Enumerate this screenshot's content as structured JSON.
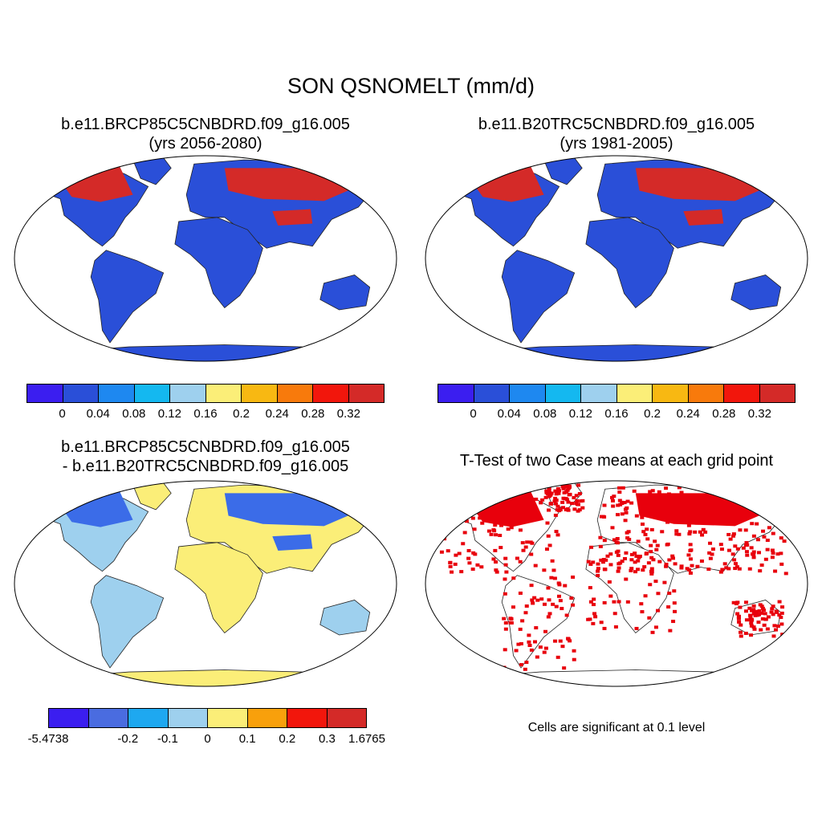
{
  "main_title": "SON QSNOMELT (mm/d)",
  "panels": [
    {
      "title_line1": "b.e11.BRCP85C5CNBDRD.f09_g16.005",
      "title_line2": "(yrs 2056-2080)"
    },
    {
      "title_line1": "b.e11.B20TRC5CNBDRD.f09_g16.005",
      "title_line2": "(yrs 1981-2005)"
    },
    {
      "title_line1": "b.e11.BRCP85C5CNBDRD.f09_g16.005",
      "title_line2": "- b.e11.B20TRC5CNBDRD.f09_g16.005"
    },
    {
      "title_line1": "T-Test of two Case means at each grid point"
    }
  ],
  "colorbar_abs": {
    "colors": [
      "#3b1ef0",
      "#2a4fd8",
      "#1e88f0",
      "#14b8f0",
      "#9ed0ee",
      "#fbee78",
      "#f8b812",
      "#f87a0c",
      "#f2160c",
      "#d42a28"
    ],
    "labels": [
      "0",
      "0.04",
      "0.08",
      "0.12",
      "0.16",
      "0.2",
      "0.24",
      "0.28",
      "0.32"
    ]
  },
  "colorbar_diff": {
    "colors": [
      "#3b1ef0",
      "#4a6ce0",
      "#1ea8f0",
      "#9ed0ee",
      "#fbee78",
      "#f8a00c",
      "#f2160c",
      "#d42a28"
    ],
    "labels": [
      "-5.4738",
      "-0.2",
      "-0.1",
      "0",
      "0.1",
      "0.2",
      "0.3",
      "1.6765"
    ]
  },
  "significance_note": "Cells are significant at 0.1 level",
  "colors": {
    "ocean": "#ffffff",
    "land_low": "#2a4fd8",
    "snow_high": "#d42a28",
    "diff_neutral": "#9ed0ee",
    "diff_pos": "#fbee78",
    "diff_neg": "#3b6ce8",
    "sig": "#e8000c"
  }
}
